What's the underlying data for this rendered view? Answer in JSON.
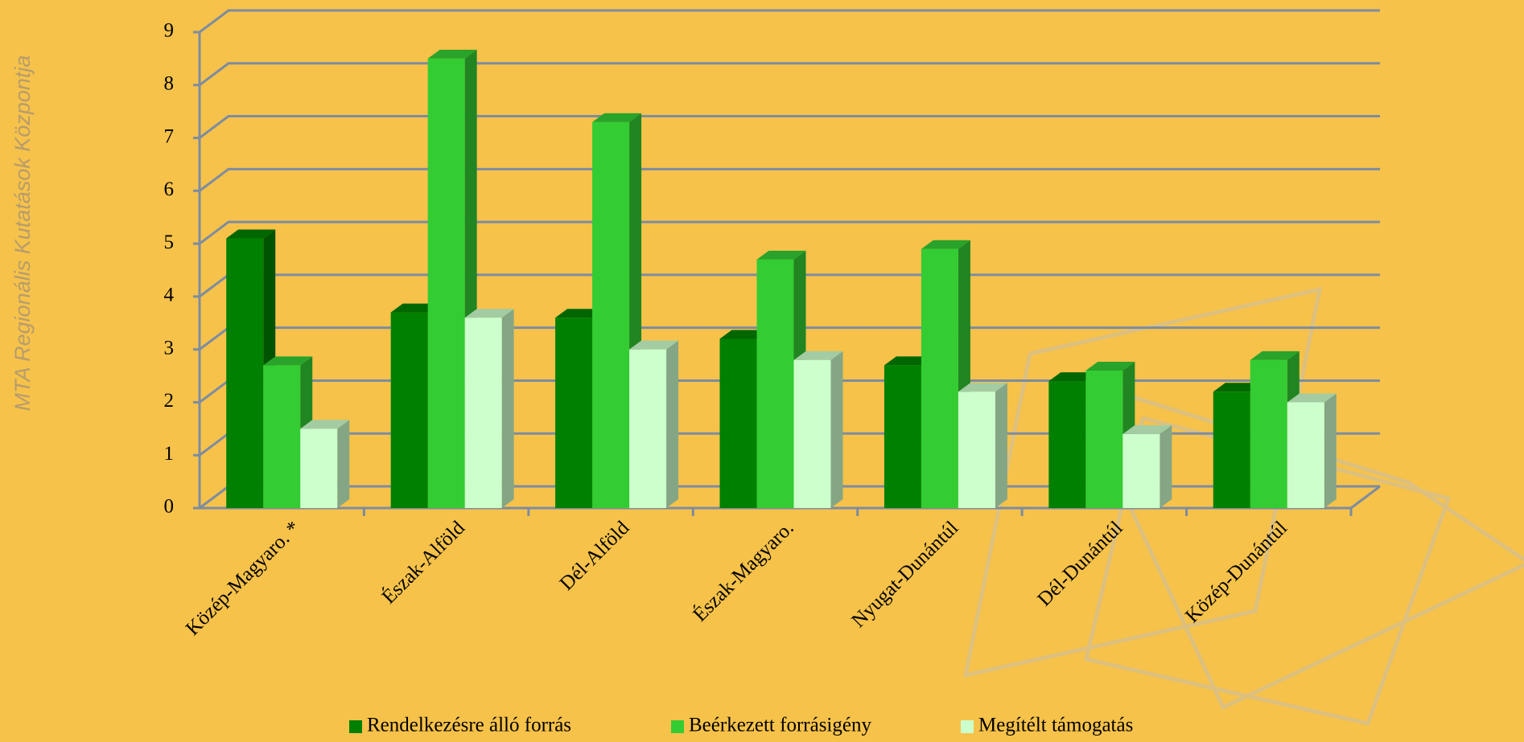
{
  "watermark": "MTA Regionális Kutatások Központja",
  "chart_data": {
    "type": "bar3d",
    "categories": [
      "Közép-Magyaro. *",
      "Észak-Alföld",
      "Dél-Alföld",
      "Észak-Magyaro.",
      "Nyugat-Dunántúl",
      "Dél-Dunántúl",
      "Közép-Dunántúl"
    ],
    "series": [
      {
        "name": "Rendelkezésre álló forrás",
        "color": "#008000",
        "values": [
          5.1,
          3.7,
          3.6,
          3.2,
          2.7,
          2.4,
          2.2
        ]
      },
      {
        "name": "Beérkezett forrásigény",
        "color": "#33cc33",
        "values": [
          2.7,
          8.5,
          7.3,
          4.7,
          4.9,
          2.6,
          2.8
        ]
      },
      {
        "name": "Megítélt támogatás",
        "color": "#ccffcc",
        "values": [
          1.5,
          3.6,
          3.0,
          2.8,
          2.2,
          1.4,
          2.0
        ]
      }
    ],
    "ylim": [
      0,
      9
    ],
    "yticks": [
      0,
      1,
      2,
      3,
      4,
      5,
      6,
      7,
      8,
      9
    ],
    "grid": true,
    "legend": "bottom"
  }
}
